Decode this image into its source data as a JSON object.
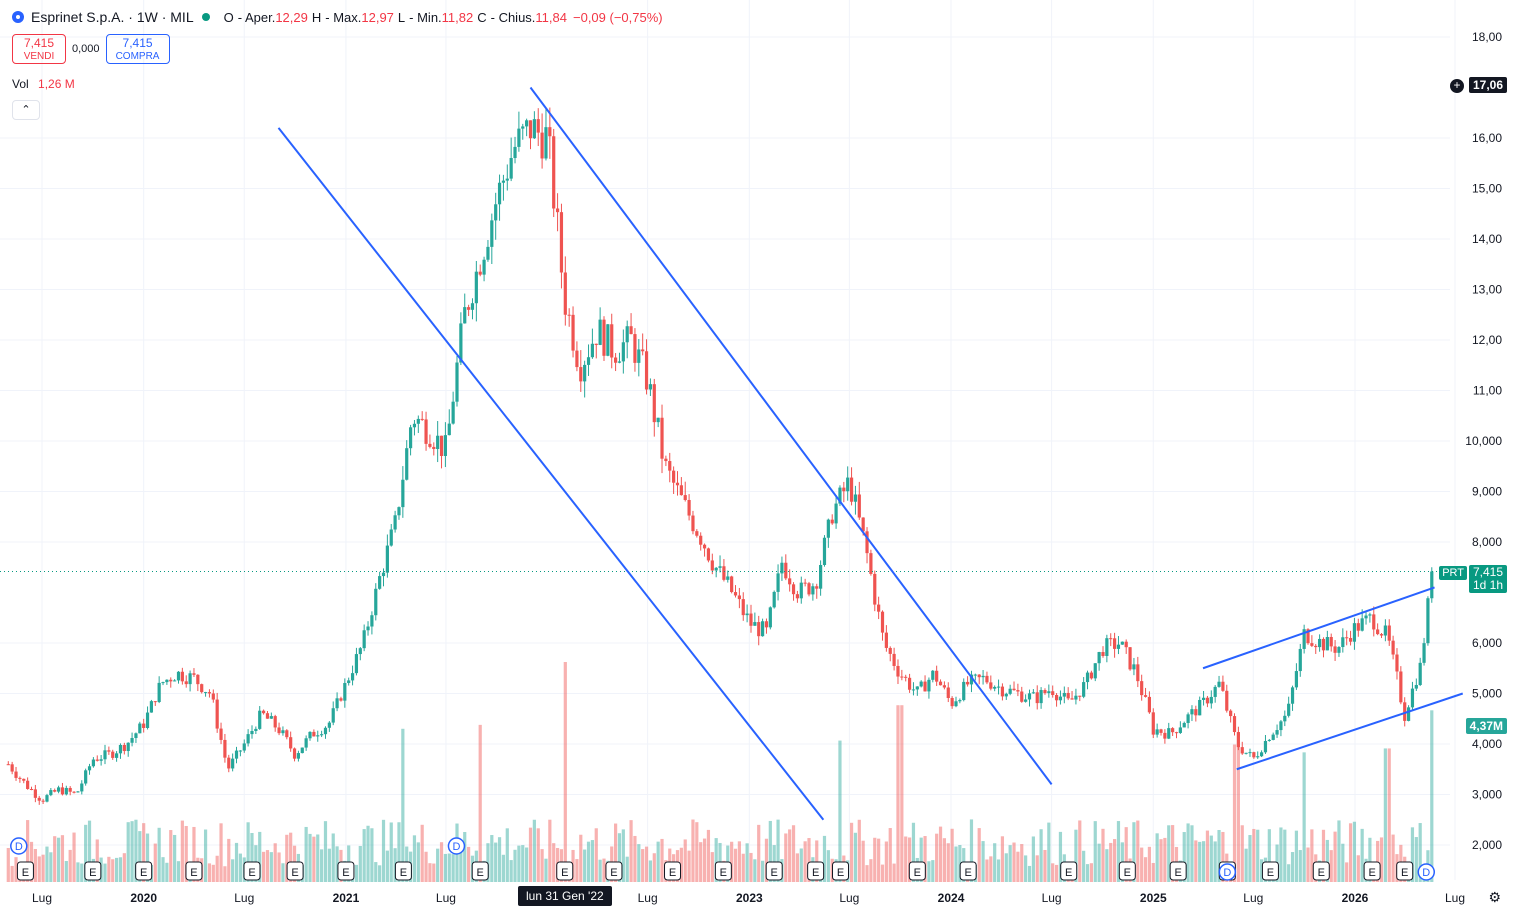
{
  "legend": {
    "symbol": "Esprinet S.p.A. · 1W · MIL",
    "open_label": "O",
    "open_text": "- Aper.",
    "open": "12,29",
    "high_label": "H",
    "high_text": "- Max.",
    "high": "12,97",
    "low_label": "L",
    "low_text": "- Min.",
    "low": "11,82",
    "close_label": "C",
    "close_text": "- Chius.",
    "close": "11,84",
    "change": "−0,09 (−0,75%)"
  },
  "trade": {
    "sell_price": "7,415",
    "sell_label": "VENDI",
    "spread": "0,000",
    "buy_price": "7,415",
    "buy_label": "COMPRA"
  },
  "volume_legend": {
    "label": "Vol",
    "value": "1,26 M"
  },
  "collapse_icon": "chevron-up-icon",
  "crosshair_price": "17,06",
  "last_price": {
    "value": "7,415",
    "countdown": "1d 1h",
    "badge": "PRT"
  },
  "volume_tag": "4,37M",
  "crosshair_date": "lun 31 Gen '22",
  "colors": {
    "up": "#26a69a",
    "down": "#ef5350",
    "trend": "#2962ff",
    "grid": "#f0f3fa"
  },
  "chart_data": {
    "type": "candlestick",
    "title": "Esprinet S.p.A. · 1W · MIL",
    "y_axis_ticks": [
      "18,00",
      "16,00",
      "15,00",
      "14,00",
      "13,00",
      "12,00",
      "11,00",
      "10,000",
      "9,000",
      "8,000",
      "6,000",
      "5,000",
      "4,000",
      "3,000",
      "2,000"
    ],
    "y_axis_values": [
      18,
      16,
      15,
      14,
      13,
      12,
      11,
      10,
      9,
      8,
      6,
      5,
      4,
      3,
      2
    ],
    "x_axis_ticks": [
      "Lug",
      "2020",
      "Lug",
      "2021",
      "Lug",
      "Lug",
      "2023",
      "Lug",
      "2024",
      "Lug",
      "2025",
      "Lug",
      "2026",
      "Lug"
    ],
    "x_axis_dates": [
      "2019-07-01",
      "2020-01-01",
      "2020-07-01",
      "2021-01-01",
      "2021-07-01",
      "2022-07-01",
      "2023-01-01",
      "2023-07-01",
      "2024-01-01",
      "2024-07-01",
      "2025-01-01",
      "2025-07-01",
      "2026-01-01",
      "2026-07-01"
    ],
    "ylim": [
      1.2,
      18.5
    ],
    "price_path": [
      [
        "2019-05-01",
        3.6
      ],
      [
        "2019-06-01",
        3.2
      ],
      [
        "2019-07-01",
        2.9
      ],
      [
        "2019-08-01",
        3.1
      ],
      [
        "2019-09-01",
        3.0
      ],
      [
        "2019-10-01",
        3.7
      ],
      [
        "2019-11-01",
        3.8
      ],
      [
        "2019-12-01",
        4.0
      ],
      [
        "2020-01-01",
        4.4
      ],
      [
        "2020-02-01",
        5.2
      ],
      [
        "2020-03-01",
        5.4
      ],
      [
        "2020-04-01",
        5.3
      ],
      [
        "2020-05-01",
        5.0
      ],
      [
        "2020-06-01",
        3.5
      ],
      [
        "2020-07-01",
        4.0
      ],
      [
        "2020-08-01",
        4.6
      ],
      [
        "2020-09-01",
        4.3
      ],
      [
        "2020-10-01",
        3.8
      ],
      [
        "2020-11-01",
        4.2
      ],
      [
        "2020-12-01",
        4.4
      ],
      [
        "2021-01-01",
        5.2
      ],
      [
        "2021-02-01",
        6.0
      ],
      [
        "2021-03-01",
        7.2
      ],
      [
        "2021-04-01",
        8.4
      ],
      [
        "2021-05-01",
        10.5
      ],
      [
        "2021-06-01",
        10.2
      ],
      [
        "2021-07-01",
        9.8
      ],
      [
        "2021-08-01",
        12.4
      ],
      [
        "2021-09-01",
        13.6
      ],
      [
        "2021-10-01",
        14.8
      ],
      [
        "2021-11-01",
        15.8
      ],
      [
        "2021-12-01",
        16.2
      ],
      [
        "2022-01-01",
        16.0
      ],
      [
        "2022-02-01",
        12.8
      ],
      [
        "2022-03-01",
        11.5
      ],
      [
        "2022-04-01",
        12.2
      ],
      [
        "2022-05-01",
        11.8
      ],
      [
        "2022-06-01",
        12.0
      ],
      [
        "2022-07-01",
        11.2
      ],
      [
        "2022-08-01",
        9.5
      ],
      [
        "2022-09-01",
        8.8
      ],
      [
        "2022-10-01",
        8.2
      ],
      [
        "2022-11-01",
        7.5
      ],
      [
        "2022-12-01",
        7.0
      ],
      [
        "2023-01-01",
        6.4
      ],
      [
        "2023-02-01",
        6.2
      ],
      [
        "2023-03-01",
        7.6
      ],
      [
        "2023-04-01",
        7.0
      ],
      [
        "2023-05-01",
        7.2
      ],
      [
        "2023-06-01",
        8.6
      ],
      [
        "2023-07-01",
        9.2
      ],
      [
        "2023-08-01",
        7.8
      ],
      [
        "2023-09-01",
        6.0
      ],
      [
        "2023-10-01",
        5.4
      ],
      [
        "2023-11-01",
        5.0
      ],
      [
        "2023-12-01",
        5.4
      ],
      [
        "2024-01-01",
        4.8
      ],
      [
        "2024-02-01",
        5.2
      ],
      [
        "2024-03-01",
        5.3
      ],
      [
        "2024-04-01",
        5.1
      ],
      [
        "2024-05-01",
        5.0
      ],
      [
        "2024-06-01",
        4.9
      ],
      [
        "2024-07-01",
        5.1
      ],
      [
        "2024-08-01",
        4.8
      ],
      [
        "2024-09-01",
        5.2
      ],
      [
        "2024-10-01",
        5.9
      ],
      [
        "2024-11-01",
        6.0
      ],
      [
        "2024-12-01",
        5.4
      ],
      [
        "2025-01-01",
        4.3
      ],
      [
        "2025-02-01",
        4.2
      ],
      [
        "2025-03-01",
        4.5
      ],
      [
        "2025-04-01",
        4.8
      ],
      [
        "2025-05-01",
        5.2
      ],
      [
        "2025-06-01",
        4.0
      ],
      [
        "2025-07-01",
        3.7
      ],
      [
        "2025-08-01",
        4.2
      ],
      [
        "2025-09-01",
        4.6
      ],
      [
        "2025-10-01",
        6.2
      ],
      [
        "2025-11-01",
        6.0
      ],
      [
        "2025-12-01",
        5.9
      ],
      [
        "2026-01-01",
        6.3
      ],
      [
        "2026-02-01",
        6.5
      ],
      [
        "2026-03-01",
        6.1
      ],
      [
        "2026-04-01",
        4.6
      ],
      [
        "2026-05-01",
        5.6
      ],
      [
        "2026-05-20",
        7.415
      ]
    ],
    "volume_ylim": [
      0,
      5.5
    ],
    "volume_spikes": [
      [
        "2021-04-15",
        3.9
      ],
      [
        "2021-09-01",
        4.0
      ],
      [
        "2022-02-01",
        5.6
      ],
      [
        "2023-06-15",
        3.6
      ],
      [
        "2023-10-01",
        4.5
      ],
      [
        "2025-06-01",
        3.5
      ],
      [
        "2025-10-01",
        3.3
      ],
      [
        "2026-03-01",
        3.4
      ],
      [
        "2026-05-20",
        4.37
      ]
    ],
    "trendlines": [
      {
        "from": [
          "2020-09-01",
          16.2
        ],
        "to": [
          "2023-05-15",
          2.5
        ]
      },
      {
        "from": [
          "2021-12-01",
          17.0
        ],
        "to": [
          "2024-07-01",
          3.2
        ]
      },
      {
        "from": [
          "2025-04-01",
          5.5
        ],
        "to": [
          "2026-05-25",
          7.1
        ]
      },
      {
        "from": [
          "2025-06-01",
          3.5
        ],
        "to": [
          "2026-07-15",
          5.0
        ]
      }
    ],
    "markers": {
      "earnings": [
        "2019-06-01",
        "2019-10-01",
        "2020-01-01",
        "2020-04-01",
        "2020-07-15",
        "2020-10-01",
        "2021-01-01",
        "2021-04-15",
        "2021-09-01",
        "2022-02-01",
        "2022-05-01",
        "2022-08-15",
        "2022-11-15",
        "2023-02-15",
        "2023-05-01",
        "2023-06-15",
        "2023-11-01",
        "2024-02-01",
        "2024-08-01",
        "2024-11-15",
        "2025-02-15",
        "2025-05-15",
        "2025-08-01",
        "2025-11-01",
        "2026-02-01",
        "2026-04-01"
      ],
      "earnings_label": "E",
      "dividends": [
        "2019-05-20",
        "2021-07-20",
        "2025-05-15",
        "2026-05-10"
      ],
      "dividends_label": "D"
    }
  }
}
